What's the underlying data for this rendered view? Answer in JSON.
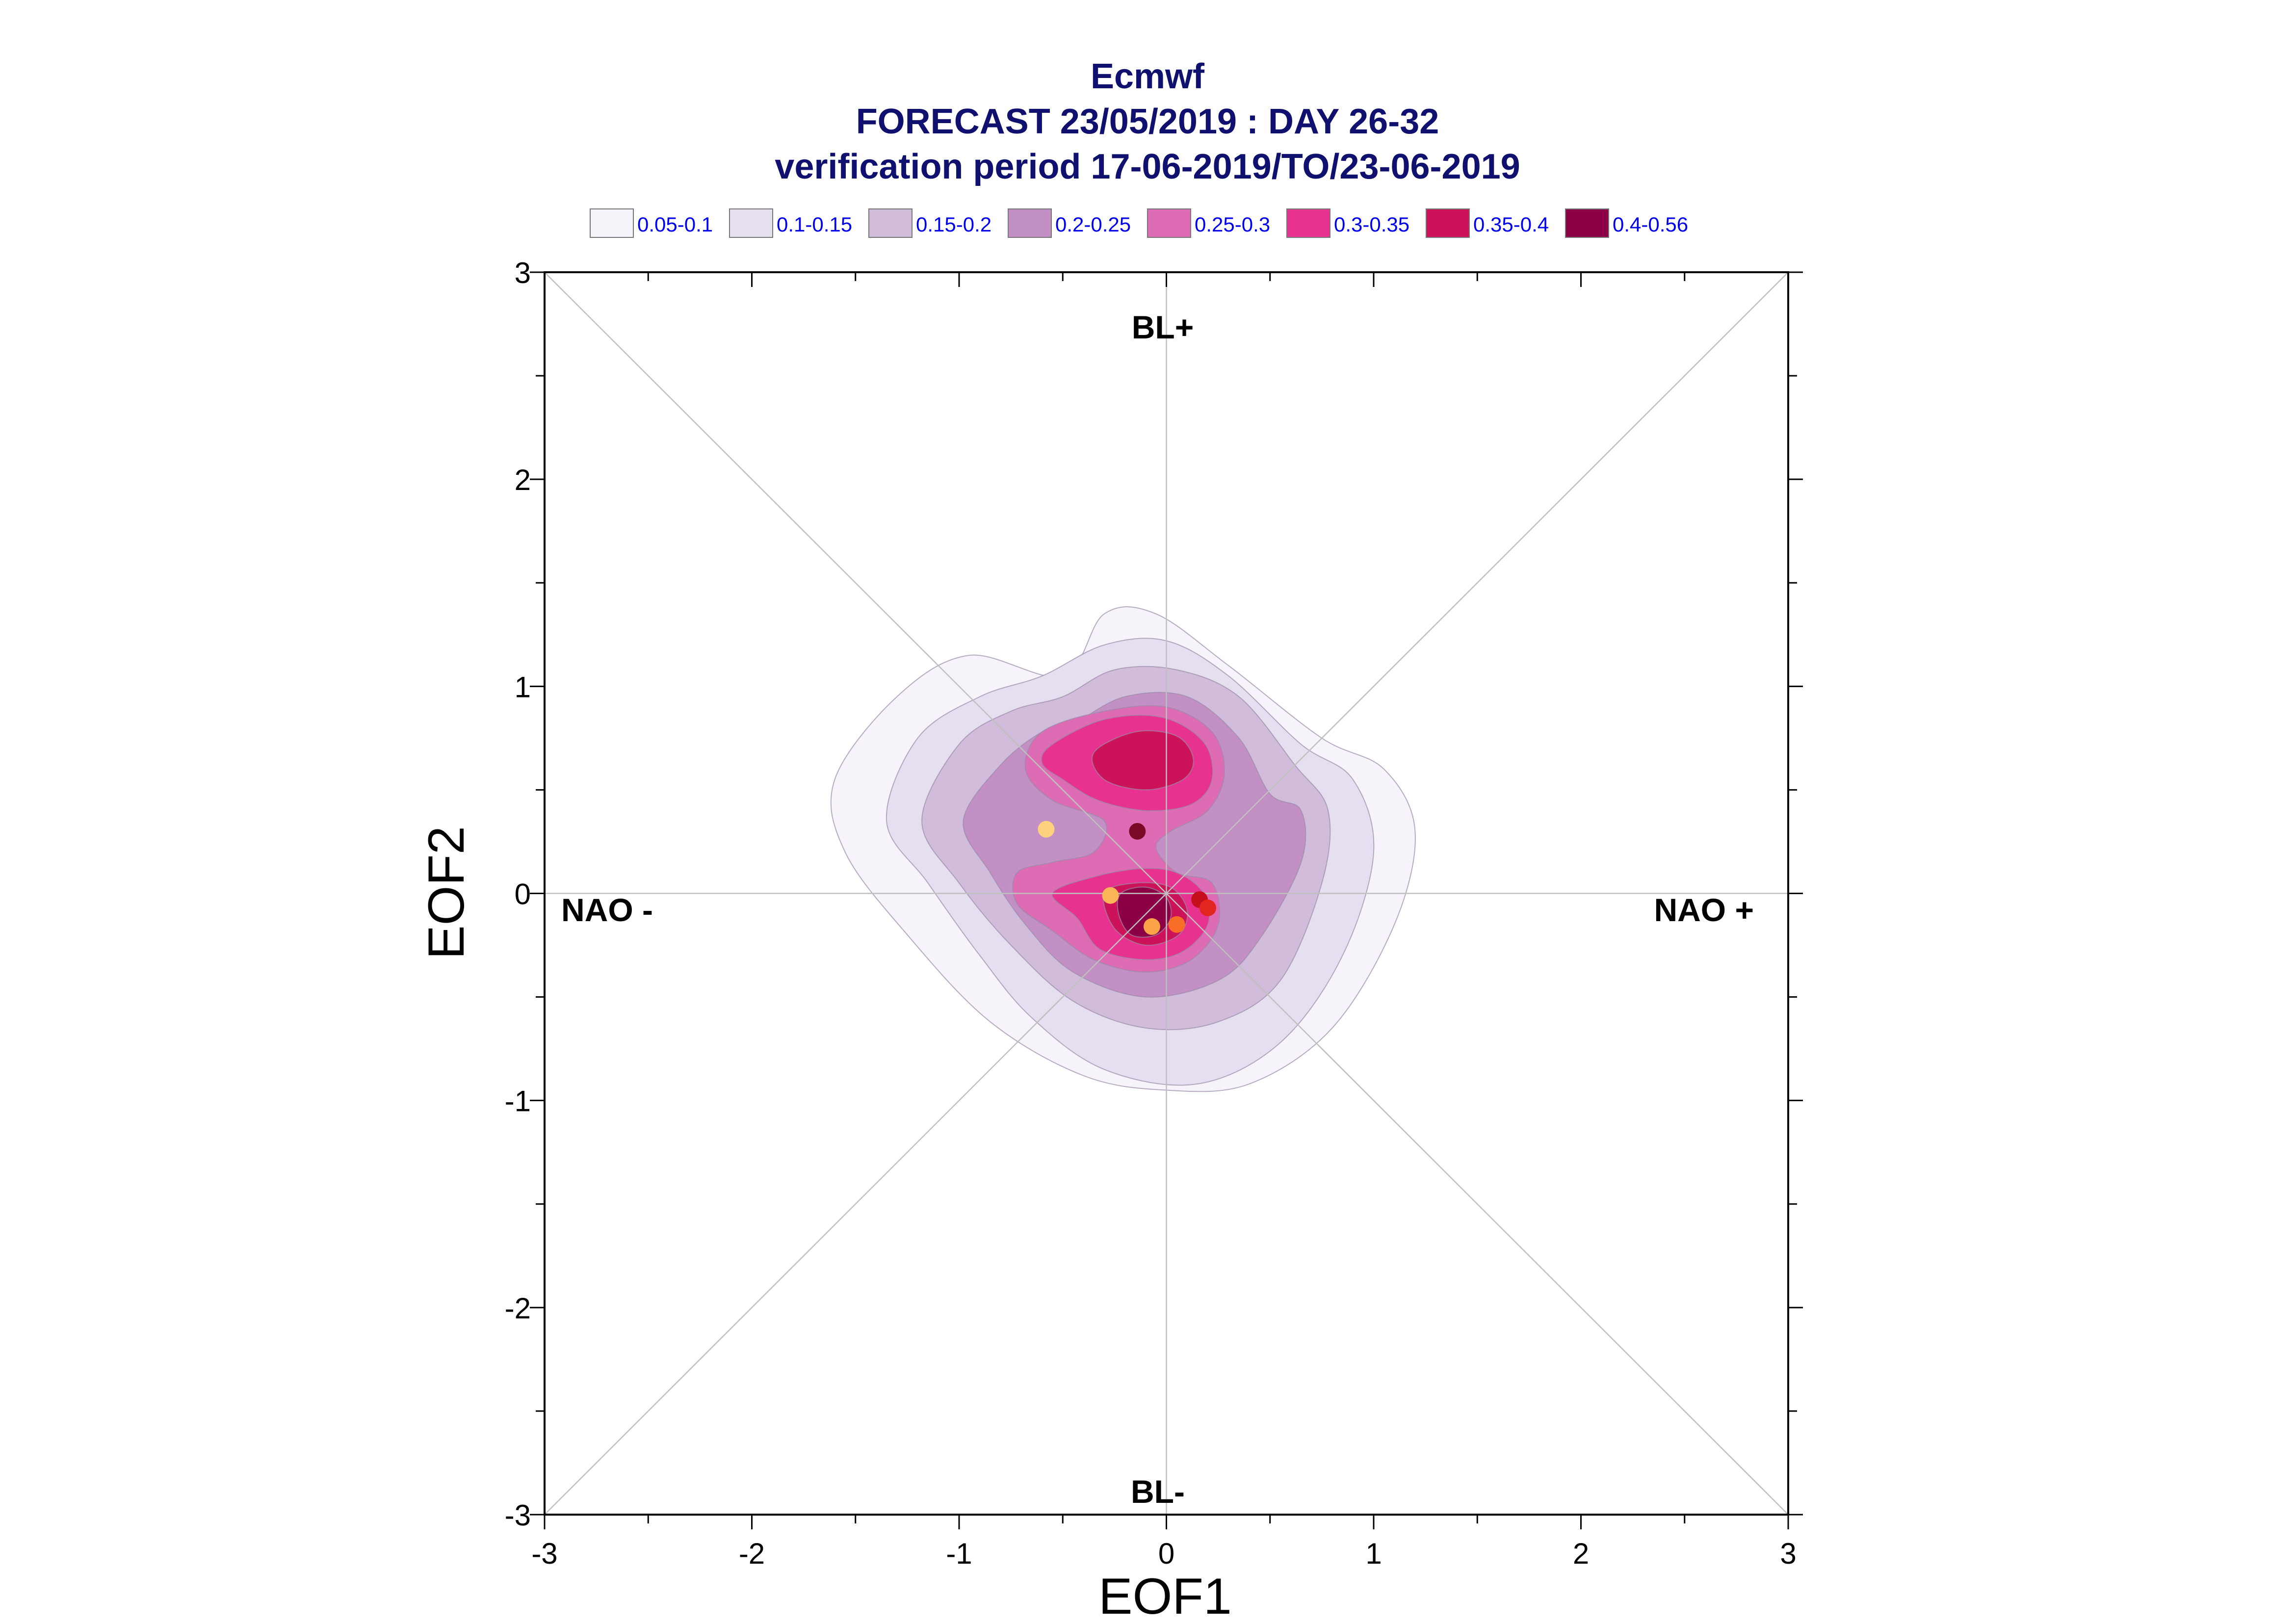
{
  "chart_data": {
    "type": "scatter",
    "title": "Ecmwf",
    "subtitle": "FORECAST 23/05/2019 : DAY 26-32",
    "subtitle2": "verification period 17-06-2019/TO/23-06-2019",
    "xlabel": "EOF1",
    "ylabel": "EOF2",
    "xlim": [
      -3,
      3
    ],
    "ylim": [
      -3,
      3
    ],
    "xticks": [
      "-3",
      "-2",
      "-1",
      "0",
      "1",
      "2",
      "3"
    ],
    "yticks": [
      "-3",
      "-2",
      "-1",
      "0",
      "1",
      "2",
      "3"
    ],
    "grid": false,
    "legend_placement": "top",
    "regime_labels": {
      "top": "BL+",
      "bottom": "BL-",
      "left": "NAO -",
      "right": "NAO +"
    },
    "density_legend": [
      {
        "label": "0.05-0.1",
        "color": "#f6f3fa"
      },
      {
        "label": "0.1-0.15",
        "color": "#e6dfef"
      },
      {
        "label": "0.15-0.2",
        "color": "#d1bddb"
      },
      {
        "label": "0.2-0.25",
        "color": "#c390c6"
      },
      {
        "label": "0.25-0.3",
        "color": "#de6cb4"
      },
      {
        "label": "0.3-0.35",
        "color": "#e8328f"
      },
      {
        "label": "0.35-0.4",
        "color": "#cc1259"
      },
      {
        "label": "0.4-0.56",
        "color": "#8c0046"
      }
    ],
    "density_contours": [
      {
        "level": "0.05-0.1",
        "points": [
          [
            -0.5,
            1.05
          ],
          [
            -0.3,
            1.35
          ],
          [
            -0.05,
            1.35
          ],
          [
            0.3,
            1.1
          ],
          [
            0.75,
            0.75
          ],
          [
            1.05,
            0.6
          ],
          [
            1.2,
            0.3
          ],
          [
            1.1,
            -0.15
          ],
          [
            0.8,
            -0.65
          ],
          [
            0.4,
            -0.92
          ],
          [
            0.0,
            -0.95
          ],
          [
            -0.4,
            -0.88
          ],
          [
            -0.85,
            -0.62
          ],
          [
            -1.25,
            -0.2
          ],
          [
            -1.55,
            0.2
          ],
          [
            -1.6,
            0.55
          ],
          [
            -1.3,
            0.95
          ],
          [
            -0.95,
            1.15
          ]
        ]
      },
      {
        "level": "0.1-0.15",
        "points": [
          [
            -0.6,
            1.05
          ],
          [
            -0.3,
            1.2
          ],
          [
            0.0,
            1.22
          ],
          [
            0.3,
            1.05
          ],
          [
            0.65,
            0.72
          ],
          [
            0.9,
            0.55
          ],
          [
            1.0,
            0.2
          ],
          [
            0.85,
            -0.3
          ],
          [
            0.55,
            -0.72
          ],
          [
            0.15,
            -0.92
          ],
          [
            -0.3,
            -0.85
          ],
          [
            -0.65,
            -0.6
          ],
          [
            -0.9,
            -0.3
          ],
          [
            -1.15,
            0.05
          ],
          [
            -1.35,
            0.35
          ],
          [
            -1.2,
            0.75
          ],
          [
            -0.9,
            0.95
          ]
        ]
      },
      {
        "level": "0.15-0.2",
        "points": [
          [
            -0.5,
            0.95
          ],
          [
            -0.25,
            1.08
          ],
          [
            0.05,
            1.08
          ],
          [
            0.35,
            0.95
          ],
          [
            0.62,
            0.62
          ],
          [
            0.78,
            0.4
          ],
          [
            0.75,
            0.05
          ],
          [
            0.55,
            -0.42
          ],
          [
            0.25,
            -0.62
          ],
          [
            -0.1,
            -0.65
          ],
          [
            -0.45,
            -0.52
          ],
          [
            -0.75,
            -0.25
          ],
          [
            -1.0,
            0.05
          ],
          [
            -1.18,
            0.35
          ],
          [
            -1.0,
            0.72
          ],
          [
            -0.75,
            0.88
          ]
        ]
      },
      {
        "level": "0.2-0.25",
        "points": [
          [
            -0.45,
            0.82
          ],
          [
            -0.2,
            0.95
          ],
          [
            0.1,
            0.95
          ],
          [
            0.35,
            0.75
          ],
          [
            0.5,
            0.48
          ],
          [
            0.65,
            0.4
          ],
          [
            0.65,
            0.15
          ],
          [
            0.45,
            -0.22
          ],
          [
            0.25,
            -0.42
          ],
          [
            -0.1,
            -0.5
          ],
          [
            -0.45,
            -0.38
          ],
          [
            -0.68,
            -0.15
          ],
          [
            -0.85,
            0.1
          ],
          [
            -0.98,
            0.35
          ],
          [
            -0.8,
            0.62
          ],
          [
            -0.6,
            0.78
          ]
        ]
      },
      {
        "level": "0.25-0.3",
        "points": [
          [
            -0.6,
            0.78
          ],
          [
            -0.3,
            0.88
          ],
          [
            0.0,
            0.9
          ],
          [
            0.22,
            0.78
          ],
          [
            0.28,
            0.58
          ],
          [
            0.2,
            0.4
          ],
          [
            0.02,
            0.3
          ],
          [
            -0.05,
            0.22
          ],
          [
            0.05,
            0.1
          ],
          [
            0.22,
            0.05
          ],
          [
            0.25,
            -0.15
          ],
          [
            0.12,
            -0.32
          ],
          [
            -0.1,
            -0.38
          ],
          [
            -0.35,
            -0.32
          ],
          [
            -0.55,
            -0.18
          ],
          [
            -0.72,
            -0.05
          ],
          [
            -0.72,
            0.1
          ],
          [
            -0.55,
            0.15
          ],
          [
            -0.35,
            0.2
          ],
          [
            -0.3,
            0.35
          ],
          [
            -0.55,
            0.45
          ],
          [
            -0.68,
            0.6
          ]
        ]
      },
      {
        "level": "0.3-0.35",
        "points": [
          [
            -0.55,
            0.72
          ],
          [
            -0.3,
            0.84
          ],
          [
            -0.02,
            0.85
          ],
          [
            0.18,
            0.73
          ],
          [
            0.22,
            0.55
          ],
          [
            0.12,
            0.43
          ],
          [
            -0.1,
            0.4
          ],
          [
            -0.33,
            0.45
          ],
          [
            -0.5,
            0.55
          ],
          [
            -0.6,
            0.63
          ]
        ]
      },
      {
        "level": "0.3-0.35",
        "points": [
          [
            -0.55,
            0.0
          ],
          [
            -0.35,
            0.08
          ],
          [
            -0.12,
            0.12
          ],
          [
            0.05,
            0.1
          ],
          [
            0.18,
            0.0
          ],
          [
            0.2,
            -0.15
          ],
          [
            0.08,
            -0.28
          ],
          [
            -0.1,
            -0.32
          ],
          [
            -0.32,
            -0.27
          ],
          [
            -0.43,
            -0.12
          ]
        ]
      },
      {
        "level": "0.35-0.4",
        "points": [
          [
            -0.35,
            0.68
          ],
          [
            -0.15,
            0.78
          ],
          [
            0.05,
            0.76
          ],
          [
            0.13,
            0.65
          ],
          [
            0.08,
            0.55
          ],
          [
            -0.1,
            0.5
          ],
          [
            -0.3,
            0.55
          ]
        ]
      },
      {
        "level": "0.35-0.4",
        "points": [
          [
            -0.3,
            0.0
          ],
          [
            -0.15,
            0.05
          ],
          [
            0.02,
            0.03
          ],
          [
            0.1,
            -0.08
          ],
          [
            0.06,
            -0.2
          ],
          [
            -0.1,
            -0.25
          ],
          [
            -0.25,
            -0.17
          ]
        ]
      },
      {
        "level": "0.4-0.56",
        "points": [
          [
            -0.22,
            0.0
          ],
          [
            -0.1,
            0.03
          ],
          [
            0.0,
            -0.02
          ],
          [
            0.02,
            -0.12
          ],
          [
            -0.05,
            -0.2
          ],
          [
            -0.17,
            -0.2
          ],
          [
            -0.23,
            -0.1
          ]
        ]
      }
    ],
    "points": [
      {
        "x": -0.58,
        "y": 0.31,
        "color": "#fdd17e"
      },
      {
        "x": -0.27,
        "y": -0.01,
        "color": "#fcb657"
      },
      {
        "x": -0.14,
        "y": 0.3,
        "color": "#7a0a26"
      },
      {
        "x": -0.07,
        "y": -0.16,
        "color": "#fca247"
      },
      {
        "x": 0.05,
        "y": -0.15,
        "color": "#f86e27"
      },
      {
        "x": 0.16,
        "y": -0.03,
        "color": "#c4101c"
      },
      {
        "x": 0.2,
        "y": -0.07,
        "color": "#e2261f"
      }
    ]
  }
}
